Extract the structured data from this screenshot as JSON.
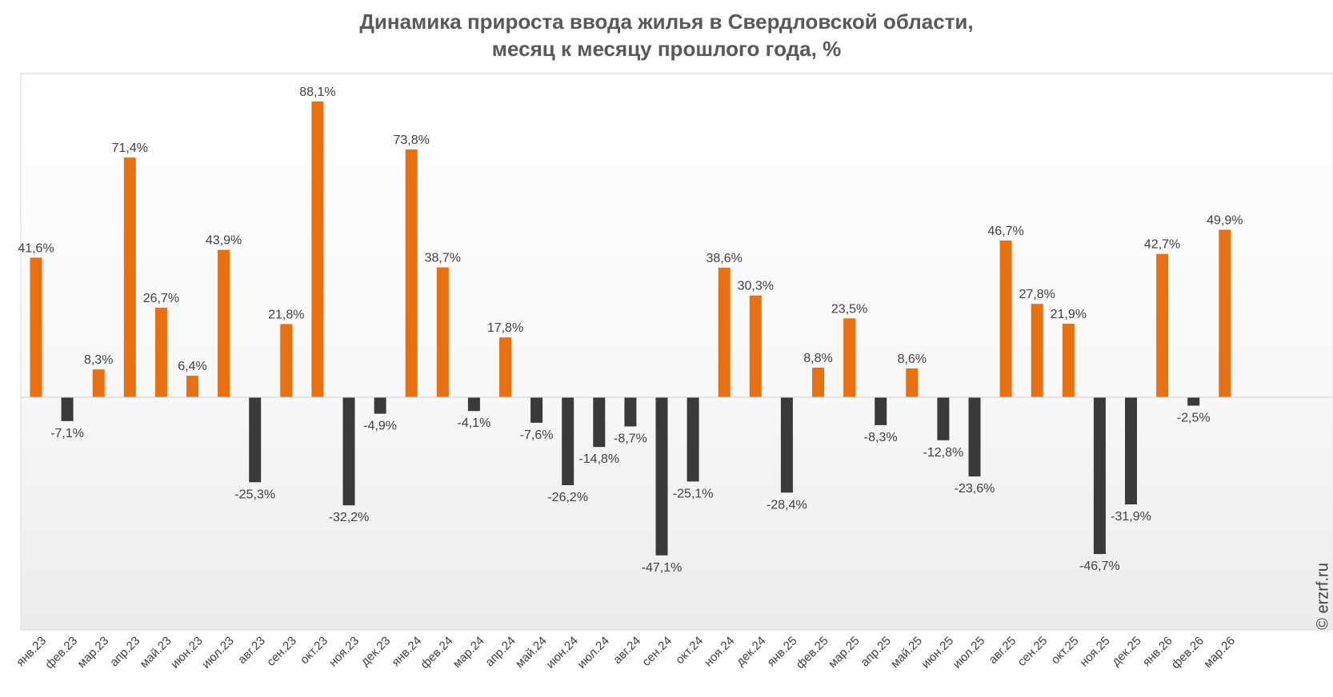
{
  "chart_data": {
    "type": "bar",
    "title_line1": "Динамика прироста ввода жилья в Свердловской области,",
    "title_line2": "месяц к месяцу прошлого года, %",
    "categories": [
      "янв.23",
      "фев.23",
      "мар.23",
      "апр.23",
      "май.23",
      "июн.23",
      "июл.23",
      "авг.23",
      "сен.23",
      "окт.23",
      "ноя.23",
      "дек.23",
      "янв.24",
      "фев.24",
      "мар.24",
      "апр.24",
      "май.24",
      "июн.24",
      "июл.24",
      "авг.24",
      "сен.24",
      "окт.24",
      "ноя.24",
      "дек.24",
      "янв.25",
      "фев.25",
      "мар.25",
      "апр.25",
      "май.25",
      "июн.25",
      "июл.25",
      "авг.25",
      "сен.25",
      "окт.25",
      "ноя.25",
      "дек.25",
      "янв.26",
      "фев.26",
      "мар.26"
    ],
    "values": [
      41.6,
      -7.1,
      8.3,
      71.4,
      26.7,
      6.4,
      43.9,
      -25.3,
      21.8,
      88.1,
      -32.2,
      -4.9,
      73.8,
      38.7,
      -4.1,
      17.8,
      -7.6,
      -26.2,
      -14.8,
      -8.7,
      -47.1,
      -25.1,
      38.6,
      30.3,
      -28.4,
      8.8,
      23.5,
      -8.3,
      8.6,
      -12.8,
      -23.6,
      46.7,
      27.8,
      21.9,
      -46.7,
      -31.9,
      42.7,
      -2.5,
      49.9
    ],
    "data_labels": [
      "41,6%",
      "-7,1%",
      "8,3%",
      "71,4%",
      "26,7%",
      "6,4%",
      "43,9%",
      "-25,3%",
      "21,8%",
      "88,1%",
      "-32,2%",
      "-4,9%",
      "73,8%",
      "38,7%",
      "-4,1%",
      "17,8%",
      "-7,6%",
      "-26,2%",
      "-14,8%",
      "-8,7%",
      "-47,1%",
      "-25,1%",
      "38,6%",
      "30,3%",
      "-28,4%",
      "8,8%",
      "23,5%",
      "-8,3%",
      "8,6%",
      "-12,8%",
      "-23,6%",
      "46,7%",
      "27,8%",
      "21,9%",
      "-46,7%",
      "-31,9%",
      "42,7%",
      "-2,5%",
      "49,9%"
    ],
    "ylim": [
      -60,
      100
    ],
    "grid": false,
    "legend": "none",
    "colors": {
      "positive": "#E8700F",
      "negative": "#3A3A3A",
      "label": "#404040"
    }
  },
  "watermark": "© erzrf.ru"
}
